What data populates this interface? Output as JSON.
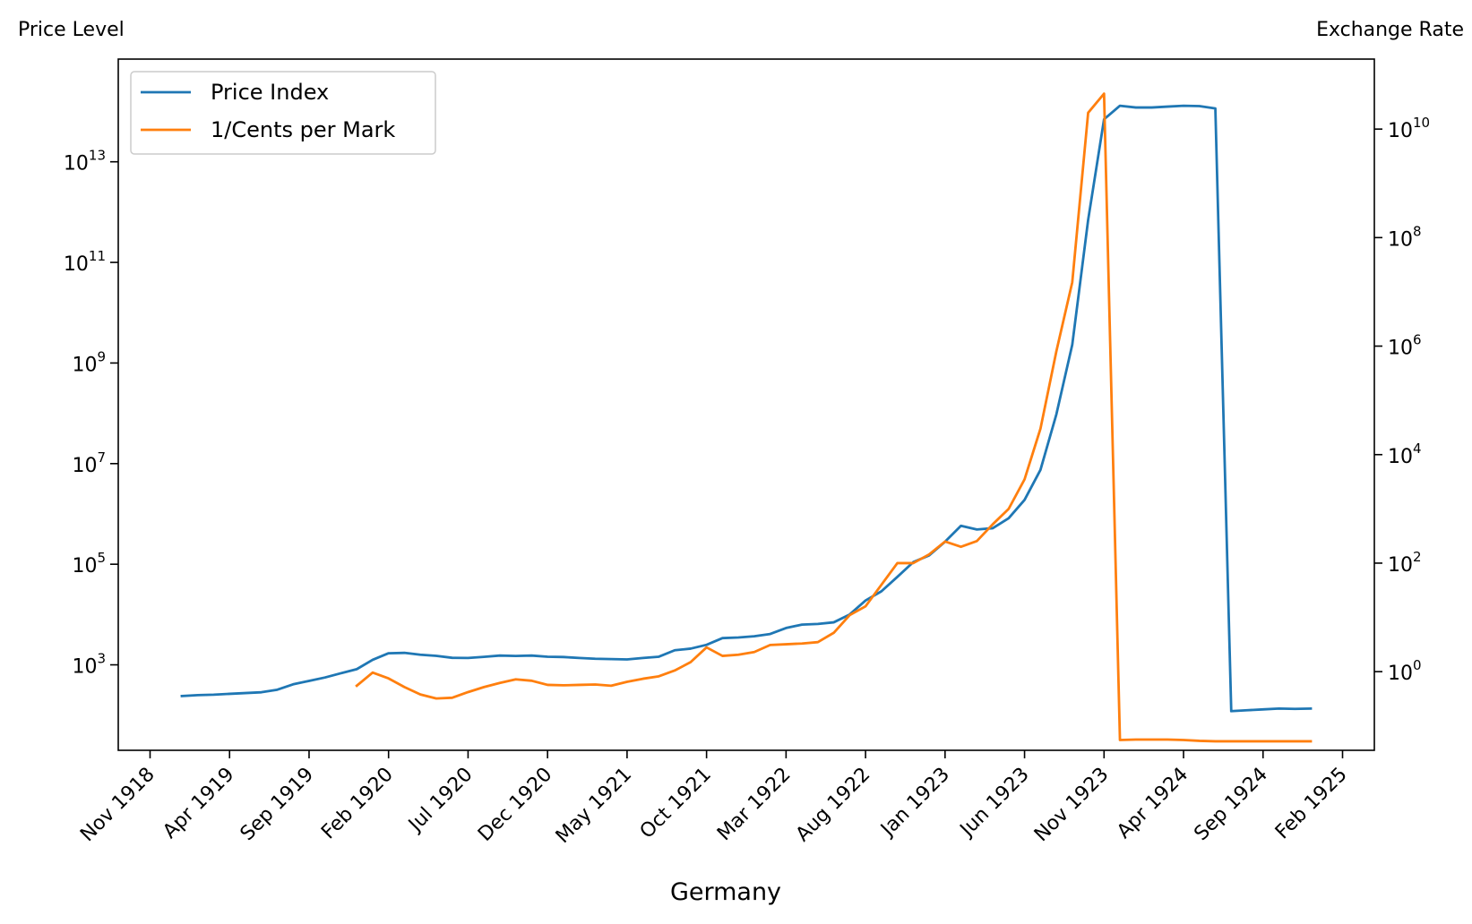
{
  "chart_data": {
    "type": "line",
    "xlabel": "Germany",
    "ylabel_left": "Price Level",
    "ylabel_right": "Exchange Rate",
    "left_scale": "log",
    "right_scale": "log",
    "grid": false,
    "legend_position": "top-left",
    "x_ticks": [
      "Nov 1918",
      "Apr 1919",
      "Sep 1919",
      "Feb 1920",
      "Jul 1920",
      "Dec 1920",
      "May 1921",
      "Oct 1921",
      "Mar 1922",
      "Aug 1922",
      "Jan 1923",
      "Jun 1923",
      "Nov 1923",
      "Apr 1924",
      "Sep 1924",
      "Feb 1925"
    ],
    "left_ticks": [
      {
        "base": "10",
        "exp": "3",
        "value": 1000
      },
      {
        "base": "10",
        "exp": "5",
        "value": 100000
      },
      {
        "base": "10",
        "exp": "7",
        "value": 10000000
      },
      {
        "base": "10",
        "exp": "9",
        "value": 1000000000
      },
      {
        "base": "10",
        "exp": "11",
        "value": 100000000000
      },
      {
        "base": "10",
        "exp": "13",
        "value": 10000000000000
      }
    ],
    "right_ticks": [
      {
        "base": "10",
        "exp": "0",
        "value": 1
      },
      {
        "base": "10",
        "exp": "2",
        "value": 100
      },
      {
        "base": "10",
        "exp": "4",
        "value": 10000
      },
      {
        "base": "10",
        "exp": "6",
        "value": 1000000
      },
      {
        "base": "10",
        "exp": "8",
        "value": 100000000
      },
      {
        "base": "10",
        "exp": "10",
        "value": 10000000000
      }
    ],
    "ylim_left": [
      20,
      1100000000000000.0
    ],
    "ylim_right": [
      0.0355,
      195000000000.0
    ],
    "xlim": [
      "1918-09",
      "1925-04"
    ],
    "series": [
      {
        "name": "Price Index",
        "color": "#1f77b4",
        "axis": "left",
        "points": [
          [
            "1919-01",
            240
          ],
          [
            "1919-02",
            250
          ],
          [
            "1919-03",
            255
          ],
          [
            "1919-04",
            265
          ],
          [
            "1919-05",
            275
          ],
          [
            "1919-06",
            285
          ],
          [
            "1919-07",
            320
          ],
          [
            "1919-08",
            410
          ],
          [
            "1919-09",
            480
          ],
          [
            "1919-10",
            560
          ],
          [
            "1919-11",
            680
          ],
          [
            "1919-12",
            820
          ],
          [
            "1920-01",
            1260
          ],
          [
            "1920-02",
            1700
          ],
          [
            "1920-03",
            1730
          ],
          [
            "1920-04",
            1590
          ],
          [
            "1920-05",
            1510
          ],
          [
            "1920-06",
            1380
          ],
          [
            "1920-07",
            1370
          ],
          [
            "1920-08",
            1440
          ],
          [
            "1920-09",
            1530
          ],
          [
            "1920-10",
            1500
          ],
          [
            "1920-11",
            1530
          ],
          [
            "1920-12",
            1450
          ],
          [
            "1921-01",
            1430
          ],
          [
            "1921-02",
            1370
          ],
          [
            "1921-03",
            1320
          ],
          [
            "1921-04",
            1300
          ],
          [
            "1921-05",
            1280
          ],
          [
            "1921-06",
            1370
          ],
          [
            "1921-07",
            1450
          ],
          [
            "1921-08",
            1950
          ],
          [
            "1921-09",
            2100
          ],
          [
            "1921-10",
            2500
          ],
          [
            "1921-11",
            3400
          ],
          [
            "1921-12",
            3500
          ],
          [
            "1922-01",
            3700
          ],
          [
            "1922-02",
            4100
          ],
          [
            "1922-03",
            5400
          ],
          [
            "1922-04",
            6300
          ],
          [
            "1922-05",
            6500
          ],
          [
            "1922-06",
            7000
          ],
          [
            "1922-07",
            10000
          ],
          [
            "1922-08",
            19000
          ],
          [
            "1922-09",
            29000
          ],
          [
            "1922-10",
            56000
          ],
          [
            "1922-11",
            110000
          ],
          [
            "1922-12",
            150000
          ],
          [
            "1923-01",
            280000
          ],
          [
            "1923-02",
            580000
          ],
          [
            "1923-03",
            490000
          ],
          [
            "1923-04",
            520000
          ],
          [
            "1923-05",
            820000
          ],
          [
            "1923-06",
            1900000
          ],
          [
            "1923-07",
            7500000
          ],
          [
            "1923-08",
            95000000
          ],
          [
            "1923-09",
            2300000000
          ],
          [
            "1923-10",
            700000000000
          ],
          [
            "1923-11",
            70000000000000
          ],
          [
            "1923-12",
            130000000000000
          ],
          [
            "1924-01",
            120000000000000
          ],
          [
            "1924-02",
            120000000000000
          ],
          [
            "1924-03",
            125000000000000
          ],
          [
            "1924-04",
            130000000000000
          ],
          [
            "1924-05",
            128000000000000
          ],
          [
            "1924-06",
            115000000000000
          ],
          [
            "1924-07",
            120
          ],
          [
            "1924-08",
            125
          ],
          [
            "1924-09",
            130
          ],
          [
            "1924-10",
            135
          ],
          [
            "1924-11",
            133
          ],
          [
            "1924-12",
            135
          ]
        ]
      },
      {
        "name": "1/Cents per Mark",
        "color": "#ff7f0e",
        "axis": "right",
        "points": [
          [
            "1919-12",
            0.55
          ],
          [
            "1920-01",
            0.96
          ],
          [
            "1920-02",
            0.75
          ],
          [
            "1920-03",
            0.52
          ],
          [
            "1920-04",
            0.38
          ],
          [
            "1920-05",
            0.32
          ],
          [
            "1920-06",
            0.33
          ],
          [
            "1920-07",
            0.42
          ],
          [
            "1920-08",
            0.52
          ],
          [
            "1920-09",
            0.62
          ],
          [
            "1920-10",
            0.72
          ],
          [
            "1920-11",
            0.68
          ],
          [
            "1920-12",
            0.57
          ],
          [
            "1921-01",
            0.56
          ],
          [
            "1921-02",
            0.57
          ],
          [
            "1921-03",
            0.58
          ],
          [
            "1921-04",
            0.55
          ],
          [
            "1921-05",
            0.65
          ],
          [
            "1921-06",
            0.74
          ],
          [
            "1921-07",
            0.82
          ],
          [
            "1921-08",
            1.05
          ],
          [
            "1921-09",
            1.5
          ],
          [
            "1921-10",
            2.8
          ],
          [
            "1921-11",
            1.95
          ],
          [
            "1921-12",
            2.05
          ],
          [
            "1922-01",
            2.3
          ],
          [
            "1922-02",
            3.1
          ],
          [
            "1922-03",
            3.2
          ],
          [
            "1922-04",
            3.3
          ],
          [
            "1922-05",
            3.5
          ],
          [
            "1922-06",
            5.2
          ],
          [
            "1922-07",
            11
          ],
          [
            "1922-08",
            16
          ],
          [
            "1922-09",
            40
          ],
          [
            "1922-10",
            100
          ],
          [
            "1922-11",
            100
          ],
          [
            "1922-12",
            145
          ],
          [
            "1923-01",
            250
          ],
          [
            "1923-02",
            200
          ],
          [
            "1923-03",
            255
          ],
          [
            "1923-04",
            520
          ],
          [
            "1923-05",
            1000
          ],
          [
            "1923-06",
            3500
          ],
          [
            "1923-07",
            30000
          ],
          [
            "1923-08",
            800000
          ],
          [
            "1923-09",
            15000000
          ],
          [
            "1923-10",
            20000000000
          ],
          [
            "1923-11",
            45000000000
          ],
          [
            "1923-12",
            0.055
          ],
          [
            "1924-01",
            0.056
          ],
          [
            "1924-02",
            0.056
          ],
          [
            "1924-03",
            0.056
          ],
          [
            "1924-04",
            0.055
          ],
          [
            "1924-05",
            0.053
          ],
          [
            "1924-06",
            0.052
          ],
          [
            "1924-07",
            0.052
          ],
          [
            "1924-08",
            0.052
          ],
          [
            "1924-09",
            0.052
          ],
          [
            "1924-10",
            0.052
          ],
          [
            "1924-11",
            0.052
          ],
          [
            "1924-12",
            0.052
          ]
        ]
      }
    ]
  }
}
